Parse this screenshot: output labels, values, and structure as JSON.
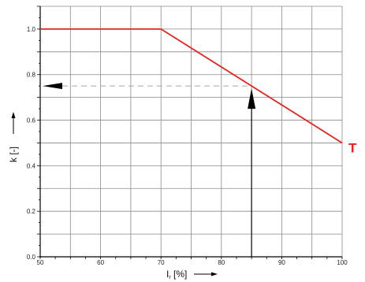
{
  "chart_data": {
    "type": "line",
    "title": "",
    "xlabel": "I",
    "xlabel_subscript": "r",
    "xlabel_unit": " [%]",
    "ylabel": "k [-]",
    "xlim": [
      50,
      100
    ],
    "ylim": [
      0,
      1.1
    ],
    "x_tick_labels": [
      "50",
      "60",
      "70",
      "80",
      "90",
      "100"
    ],
    "x_tick_values": [
      50,
      60,
      70,
      80,
      90,
      100
    ],
    "y_tick_labels": [
      "0.0",
      "0.2",
      "0.4",
      "0.6",
      "0.8",
      "1.0"
    ],
    "y_tick_values": [
      0.0,
      0.2,
      0.4,
      0.6,
      0.8,
      1.0
    ],
    "grid": true,
    "series": [
      {
        "x": [
          50,
          70,
          100
        ],
        "y": [
          1.0,
          1.0,
          0.5
        ],
        "color": "#e8231f"
      }
    ],
    "guide": {
      "x": 85,
      "y": 0.75,
      "color": "#000000",
      "dash_color": "#b0b0b0"
    },
    "annotations": [
      {
        "text": "T",
        "color": "#e8231f"
      }
    ]
  }
}
